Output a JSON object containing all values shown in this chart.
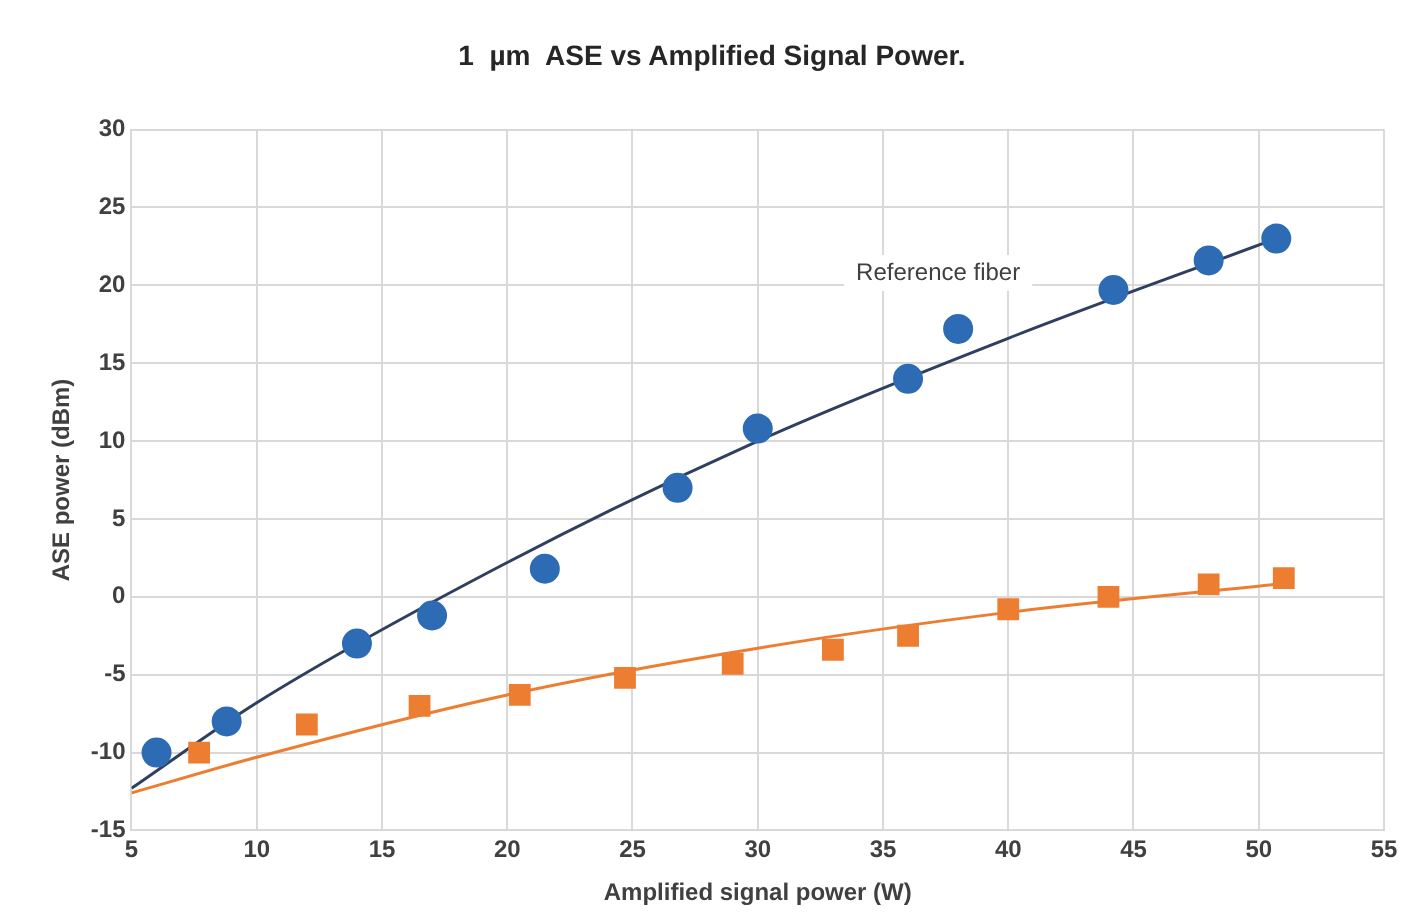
{
  "chart_data": {
    "type": "scatter",
    "title": "1  µm  ASE vs Amplified Signal Power.",
    "xlabel": "Amplified signal power (W)",
    "ylabel": "ASE power (dBm)",
    "xlim": [
      5,
      55
    ],
    "xticks": [
      5,
      10,
      15,
      20,
      25,
      30,
      35,
      40,
      45,
      50,
      55
    ],
    "ylim": [
      -15,
      30
    ],
    "yticks": [
      -15,
      -10,
      -5,
      0,
      5,
      10,
      15,
      20,
      25,
      30
    ],
    "grid": true,
    "legend": false,
    "series": [
      {
        "name": "Reference fiber",
        "marker": "circle",
        "color": "#2e6bb5",
        "x": [
          6,
          8.8,
          14,
          17,
          21.5,
          26.8,
          30,
          36,
          38,
          44.2,
          48,
          50.7
        ],
        "values": [
          -10,
          -8,
          -3,
          -1.2,
          1.8,
          7,
          10.8,
          14,
          17.2,
          19.7,
          21.6,
          23
        ]
      },
      {
        "marker": "square",
        "color": "#ed7d31",
        "x": [
          7.7,
          12,
          16.5,
          20.5,
          24.7,
          29,
          33,
          36,
          40,
          44,
          48,
          51
        ],
        "values": [
          -10,
          -8.2,
          -7,
          -6.3,
          -5.2,
          -4.3,
          -3.4,
          -2.5,
          -0.8,
          0,
          0.8,
          1.2
        ]
      },
      {
        "type": "line",
        "marker": "none",
        "color": "#2f3f5f",
        "x": [
          5,
          10,
          20,
          30,
          40,
          50.7
        ],
        "values": [
          -12.3,
          -6.8,
          2.2,
          10,
          16.6,
          23
        ]
      },
      {
        "type": "line",
        "marker": "none",
        "color": "#ed7d31",
        "x": [
          5,
          10,
          20,
          30,
          40,
          50.7
        ],
        "values": [
          -12.6,
          -10.3,
          -6.3,
          -3.3,
          -1,
          0.8
        ]
      }
    ]
  }
}
